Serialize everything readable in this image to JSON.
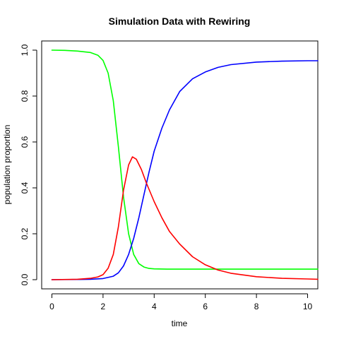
{
  "chart_data": {
    "type": "line",
    "title": "Simulation Data with Rewiring",
    "xlabel": "time",
    "ylabel": "population proportion",
    "xlim": [
      -0.4,
      10.4
    ],
    "ylim": [
      -0.04,
      1.04
    ],
    "xticks": [
      0,
      2,
      4,
      6,
      8,
      10
    ],
    "xtick_labels": [
      "0",
      "2",
      "4",
      "6",
      "8",
      "10"
    ],
    "yticks": [
      0.0,
      0.2,
      0.4,
      0.6,
      0.8,
      1.0
    ],
    "ytick_labels": [
      "0.0",
      "0.2",
      "0.4",
      "0.6",
      "0.8",
      "1.0"
    ],
    "grid": false,
    "legend": "none",
    "series": [
      {
        "color": "#00ff00",
        "x": [
          0.0,
          0.5,
          1.0,
          1.5,
          1.8,
          2.0,
          2.2,
          2.4,
          2.6,
          2.8,
          3.0,
          3.2,
          3.4,
          3.6,
          3.8,
          4.0,
          4.5,
          5.0,
          5.5,
          6.0,
          7.0,
          8.0,
          9.0,
          10.0,
          10.4
        ],
        "y": [
          1.0,
          0.999,
          0.996,
          0.99,
          0.978,
          0.955,
          0.9,
          0.78,
          0.58,
          0.36,
          0.2,
          0.11,
          0.07,
          0.055,
          0.049,
          0.047,
          0.046,
          0.046,
          0.046,
          0.046,
          0.046,
          0.046,
          0.046,
          0.046,
          0.046
        ]
      },
      {
        "color": "#0000ff",
        "x": [
          0.0,
          1.0,
          1.5,
          2.0,
          2.4,
          2.6,
          2.8,
          3.0,
          3.2,
          3.4,
          3.6,
          3.8,
          4.0,
          4.3,
          4.6,
          5.0,
          5.5,
          6.0,
          6.5,
          7.0,
          8.0,
          9.0,
          10.0,
          10.4
        ],
        "y": [
          0.0,
          0.001,
          0.002,
          0.005,
          0.015,
          0.03,
          0.06,
          0.11,
          0.18,
          0.27,
          0.37,
          0.47,
          0.56,
          0.66,
          0.74,
          0.82,
          0.875,
          0.905,
          0.925,
          0.937,
          0.948,
          0.952,
          0.954,
          0.954
        ]
      },
      {
        "color": "#ff0000",
        "x": [
          0.0,
          1.0,
          1.5,
          1.8,
          2.0,
          2.2,
          2.4,
          2.6,
          2.8,
          3.0,
          3.15,
          3.3,
          3.5,
          3.7,
          4.0,
          4.3,
          4.6,
          5.0,
          5.5,
          6.0,
          6.5,
          7.0,
          8.0,
          9.0,
          10.0,
          10.4
        ],
        "y": [
          0.0,
          0.002,
          0.006,
          0.012,
          0.022,
          0.05,
          0.11,
          0.23,
          0.39,
          0.5,
          0.535,
          0.525,
          0.48,
          0.42,
          0.34,
          0.27,
          0.21,
          0.155,
          0.1,
          0.065,
          0.042,
          0.028,
          0.013,
          0.006,
          0.003,
          0.002
        ]
      }
    ]
  }
}
